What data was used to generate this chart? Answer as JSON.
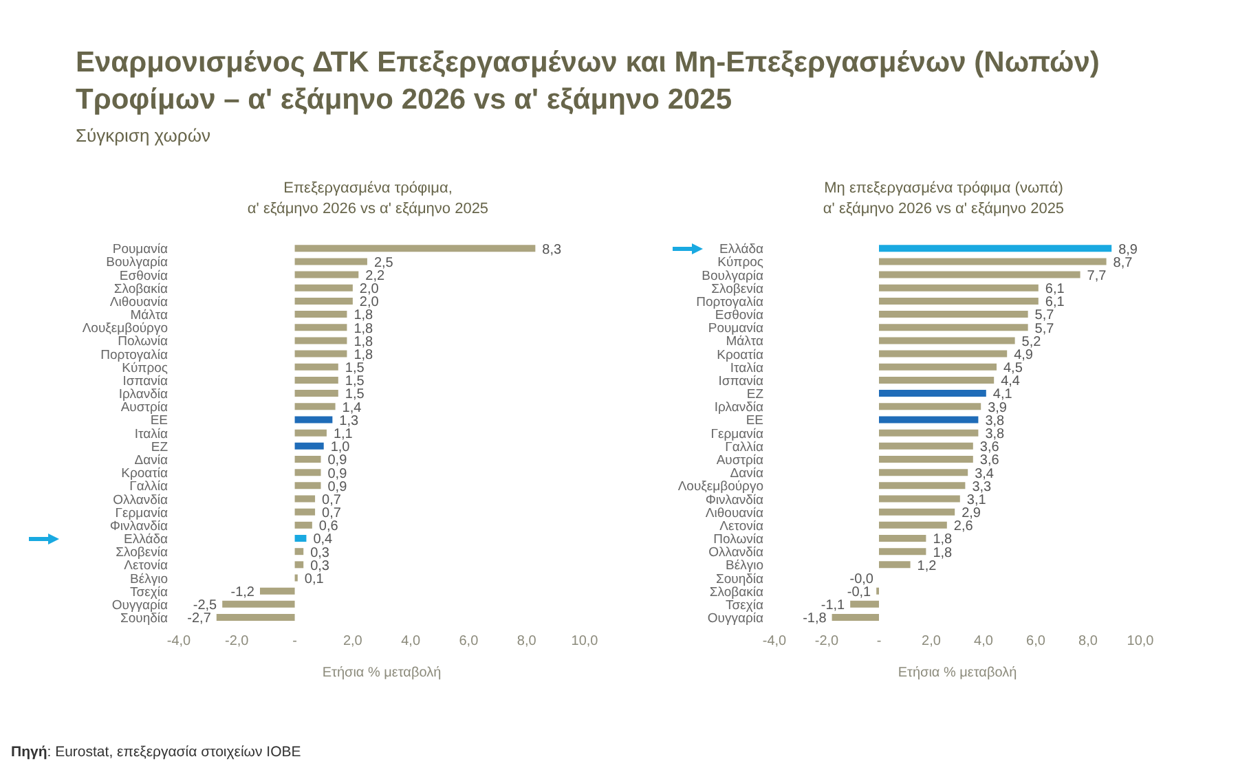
{
  "chart_data": [
    {
      "type": "other",
      "title": "Εναρμονισμένος ΔΤΚ Επεξεργασμένων και Μη-Επεξεργασμένων (Νωπών) Τροφίμων – α' εξάμηνο 2026 vs α' εξάμηνο 2025",
      "subtitle": "Σύγκριση χωρών",
      "annotations": [
        "Πηγή: Eurostat, επεξεργασία στοιχείων ΙΟΒΕ"
      ]
    },
    {
      "type": "bar",
      "orientation": "horizontal",
      "title": "Επεξεργασμένα τρόφιμα,\nα' εξάμηνο 2026 vs α' εξάμηνο 2025",
      "xlabel": "Ετήσια % μεταβολή",
      "categories": [
        "Ρουμανία",
        "Βουλγαρία",
        "Εσθονία",
        "Σλοβακία",
        "Λιθουανία",
        "Μάλτα",
        "Λουξεμβούργο",
        "Πολωνία",
        "Πορτογαλία",
        "Κύπρος",
        "Ισπανία",
        "Ιρλανδία",
        "Αυστρία",
        "ΕΕ",
        "Ιταλία",
        "ΕΖ",
        "Δανία",
        "Κροατία",
        "Γαλλία",
        "Ολλανδία",
        "Γερμανία",
        "Φινλανδία",
        "Ελλάδα",
        "Σλοβενία",
        "Λετονία",
        "Βέλγιο",
        "Τσεχία",
        "Ουγγαρία",
        "Σουηδία"
      ],
      "values": [
        8.3,
        2.5,
        2.2,
        2.0,
        2.0,
        1.8,
        1.8,
        1.8,
        1.8,
        1.5,
        1.5,
        1.5,
        1.4,
        1.3,
        1.1,
        1.0,
        0.9,
        0.9,
        0.9,
        0.7,
        0.7,
        0.6,
        0.4,
        0.3,
        0.3,
        0.1,
        -1.2,
        -2.5,
        -2.7
      ],
      "value_labels": [
        "8,3",
        "2,5",
        "2,2",
        "2,0",
        "2,0",
        "1,8",
        "1,8",
        "1,8",
        "1,8",
        "1,5",
        "1,5",
        "1,5",
        "1,4",
        "1,3",
        "1,1",
        "1,0",
        "0,9",
        "0,9",
        "0,9",
        "0,7",
        "0,7",
        "0,6",
        "0,4",
        "0,3",
        "0,3",
        "0,1",
        "-1,2",
        "-2,5",
        "-2,7"
      ],
      "colors": [
        "#aba47f",
        "#aba47f",
        "#aba47f",
        "#aba47f",
        "#aba47f",
        "#aba47f",
        "#aba47f",
        "#aba47f",
        "#aba47f",
        "#aba47f",
        "#aba47f",
        "#aba47f",
        "#aba47f",
        "#1f6cb8",
        "#aba47f",
        "#1f6cb8",
        "#aba47f",
        "#aba47f",
        "#aba47f",
        "#aba47f",
        "#aba47f",
        "#aba47f",
        "#19a9e1",
        "#aba47f",
        "#aba47f",
        "#aba47f",
        "#aba47f",
        "#aba47f",
        "#aba47f"
      ],
      "xlim": [
        -4,
        10
      ],
      "xticks": [
        {
          "value": -4,
          "label": "-4,0"
        },
        {
          "value": -2,
          "label": "-2,0"
        },
        {
          "value": 0,
          "label": "-"
        },
        {
          "value": 2,
          "label": "2,0"
        },
        {
          "value": 4,
          "label": "4,0"
        },
        {
          "value": 6,
          "label": "6,0"
        },
        {
          "value": 8,
          "label": "8,0"
        },
        {
          "value": 10,
          "label": "10,0"
        }
      ]
    },
    {
      "type": "bar",
      "orientation": "horizontal",
      "title": "Μη επεξεργασμένα τρόφιμα (νωπά)\nα' εξάμηνο 2026 vs α' εξάμηνο 2025",
      "xlabel": "Ετήσια % μεταβολή",
      "categories": [
        "Ελλάδα",
        "Κύπρος",
        "Βουλγαρία",
        "Σλοβενία",
        "Πορτογαλία",
        "Εσθονία",
        "Ρουμανία",
        "Μάλτα",
        "Κροατία",
        "Ιταλία",
        "Ισπανία",
        "ΕΖ",
        "Ιρλανδία",
        "ΕΕ",
        "Γερμανία",
        "Γαλλία",
        "Αυστρία",
        "Δανία",
        "Λουξεμβούργο",
        "Φινλανδία",
        "Λιθουανία",
        "Λετονία",
        "Πολωνία",
        "Ολλανδία",
        "Βέλγιο",
        "Σουηδία",
        "Σλοβακία",
        "Τσεχία",
        "Ουγγαρία"
      ],
      "values": [
        8.9,
        8.7,
        7.7,
        6.1,
        6.1,
        5.7,
        5.7,
        5.2,
        4.9,
        4.5,
        4.4,
        4.1,
        3.9,
        3.8,
        3.8,
        3.6,
        3.6,
        3.4,
        3.3,
        3.1,
        2.9,
        2.6,
        1.8,
        1.8,
        1.2,
        -0.0,
        -0.1,
        -1.1,
        -1.8
      ],
      "value_labels": [
        "8,9",
        "8,7",
        "7,7",
        "6,1",
        "6,1",
        "5,7",
        "5,7",
        "5,2",
        "4,9",
        "4,5",
        "4,4",
        "4,1",
        "3,9",
        "3,8",
        "3,8",
        "3,6",
        "3,6",
        "3,4",
        "3,3",
        "3,1",
        "2,9",
        "2,6",
        "1,8",
        "1,8",
        "1,2",
        "-0,0",
        "-0,1",
        "-1,1",
        "-1,8"
      ],
      "colors": [
        "#19a9e1",
        "#aba47f",
        "#aba47f",
        "#aba47f",
        "#aba47f",
        "#aba47f",
        "#aba47f",
        "#aba47f",
        "#aba47f",
        "#aba47f",
        "#aba47f",
        "#1f6cb8",
        "#aba47f",
        "#1f6cb8",
        "#aba47f",
        "#aba47f",
        "#aba47f",
        "#aba47f",
        "#aba47f",
        "#aba47f",
        "#aba47f",
        "#aba47f",
        "#aba47f",
        "#aba47f",
        "#aba47f",
        "#aba47f",
        "#aba47f",
        "#aba47f",
        "#aba47f"
      ],
      "xlim": [
        -4,
        10
      ],
      "xticks": [
        {
          "value": -4,
          "label": "-4,0"
        },
        {
          "value": -2,
          "label": "-2,0"
        },
        {
          "value": 0,
          "label": "-"
        },
        {
          "value": 2,
          "label": "2,0"
        },
        {
          "value": 4,
          "label": "4,0"
        },
        {
          "value": 6,
          "label": "6,0"
        },
        {
          "value": 8,
          "label": "8,0"
        },
        {
          "value": 10,
          "label": "10,0"
        }
      ]
    }
  ]
}
